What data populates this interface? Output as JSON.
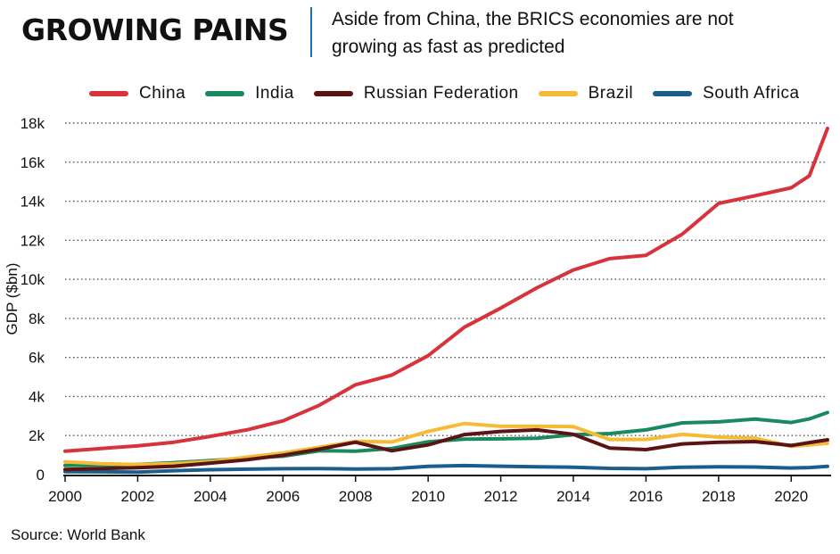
{
  "header": {
    "title": "GROWING PAINS",
    "subtitle_line1": "Aside from China, the BRICS economies are not",
    "subtitle_line2": "growing as fast as predicted"
  },
  "source": "Source: World Bank",
  "chart_data": {
    "type": "line",
    "ylabel": "GDP ($bn)",
    "xlabel": "",
    "ylim": [
      0,
      18000
    ],
    "xlim": [
      2000,
      2021
    ],
    "grid": "horizontal dotted",
    "legend_position": "top",
    "y_ticks": [
      0,
      2000,
      4000,
      6000,
      8000,
      10000,
      12000,
      14000,
      16000,
      18000
    ],
    "y_tick_labels": [
      "0",
      "2k",
      "4k",
      "6k",
      "8k",
      "10k",
      "12k",
      "14k",
      "16k",
      "18k"
    ],
    "x_ticks": [
      2000,
      2002,
      2004,
      2006,
      2008,
      2010,
      2012,
      2014,
      2016,
      2018,
      2020
    ],
    "x_tick_labels": [
      "2000",
      "2002",
      "2004",
      "2006",
      "2008",
      "2010",
      "2012",
      "2014",
      "2016",
      "2018",
      "2020"
    ],
    "x": [
      2000,
      2001,
      2002,
      2003,
      2004,
      2005,
      2006,
      2007,
      2008,
      2009,
      2010,
      2011,
      2012,
      2013,
      2014,
      2015,
      2016,
      2017,
      2018,
      2019,
      2020,
      2020.5,
      2021
    ],
    "series": [
      {
        "name": "China",
        "color": "#d7333b",
        "values": [
          1200,
          1340,
          1470,
          1660,
          1960,
          2290,
          2750,
          3550,
          4600,
          5100,
          6090,
          7550,
          8530,
          9570,
          10480,
          11060,
          11230,
          12310,
          13890,
          14280,
          14690,
          15300,
          17730
        ]
      },
      {
        "name": "India",
        "color": "#1a8a5e",
        "values": [
          470,
          490,
          520,
          610,
          720,
          840,
          940,
          1220,
          1200,
          1340,
          1680,
          1820,
          1830,
          1860,
          2040,
          2100,
          2290,
          2650,
          2700,
          2840,
          2670,
          2850,
          3180
        ]
      },
      {
        "name": "Russian Federation",
        "color": "#5a1414",
        "values": [
          260,
          310,
          350,
          430,
          590,
          760,
          990,
          1300,
          1660,
          1220,
          1520,
          2050,
          2210,
          2290,
          2060,
          1360,
          1280,
          1570,
          1660,
          1690,
          1490,
          1640,
          1780
        ]
      },
      {
        "name": "Brazil",
        "color": "#f5bb36",
        "values": [
          660,
          560,
          510,
          560,
          670,
          890,
          1110,
          1400,
          1700,
          1670,
          2210,
          2620,
          2470,
          2470,
          2460,
          1800,
          1800,
          2060,
          1920,
          1870,
          1450,
          1520,
          1610
        ]
      },
      {
        "name": "South Africa",
        "color": "#1b5e8c",
        "values": [
          150,
          140,
          130,
          200,
          250,
          280,
          300,
          310,
          290,
          300,
          420,
          460,
          430,
          400,
          380,
          320,
          300,
          380,
          400,
          390,
          340,
          360,
          420
        ]
      }
    ]
  }
}
